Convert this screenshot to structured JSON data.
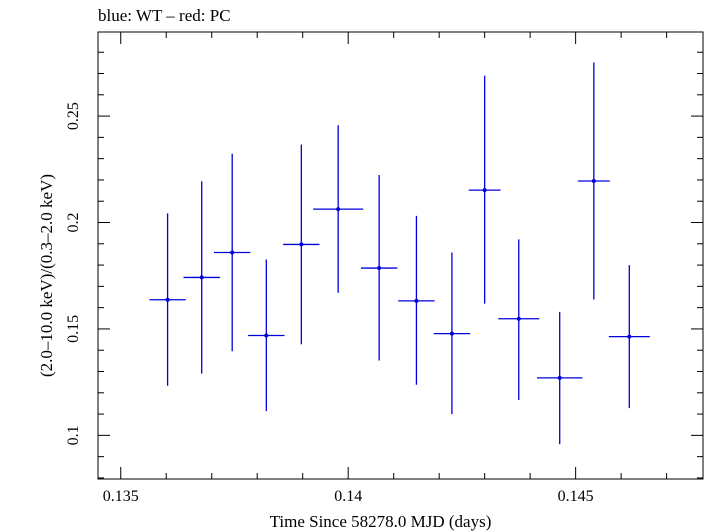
{
  "chart_data": {
    "type": "scatter",
    "title": "blue: WT – red: PC",
    "xlabel": "Time Since 58278.0 MJD (days)",
    "ylabel": "(2.0–10.0 keV)/(0.3–2.0 keV)",
    "xlim": [
      0.1345,
      0.1478
    ],
    "ylim": [
      0.0795,
      0.2895
    ],
    "x_ticks": [
      0.135,
      0.14,
      0.145
    ],
    "x_tick_labels": [
      "0.135",
      "0.14",
      "0.145"
    ],
    "y_ticks": [
      0.1,
      0.15,
      0.2,
      0.25
    ],
    "y_tick_labels": [
      "0.1",
      "0.15",
      "0.2",
      "0.25"
    ],
    "grid": false,
    "series": [
      {
        "color": "#0000dd",
        "points": [
          {
            "x": 0.13603,
            "y": 0.1637,
            "xerr": 0.0004,
            "ylo": 0.1233,
            "yhi": 0.2043
          },
          {
            "x": 0.13678,
            "y": 0.1742,
            "xerr": 0.0004,
            "ylo": 0.129,
            "yhi": 0.2194
          },
          {
            "x": 0.13745,
            "y": 0.1859,
            "xerr": 0.0004,
            "ylo": 0.1395,
            "yhi": 0.2323
          },
          {
            "x": 0.1382,
            "y": 0.1469,
            "xerr": 0.0004,
            "ylo": 0.1114,
            "yhi": 0.1826
          },
          {
            "x": 0.13897,
            "y": 0.1897,
            "xerr": 0.0004,
            "ylo": 0.1428,
            "yhi": 0.2366
          },
          {
            "x": 0.13978,
            "y": 0.2063,
            "xerr": 0.00055,
            "ylo": 0.167,
            "yhi": 0.2457
          },
          {
            "x": 0.14068,
            "y": 0.1786,
            "xerr": 0.0004,
            "ylo": 0.1352,
            "yhi": 0.2223
          },
          {
            "x": 0.1415,
            "y": 0.1632,
            "xerr": 0.0004,
            "ylo": 0.1238,
            "yhi": 0.2031
          },
          {
            "x": 0.14228,
            "y": 0.1478,
            "xerr": 0.0004,
            "ylo": 0.11,
            "yhi": 0.1859
          },
          {
            "x": 0.143,
            "y": 0.2152,
            "xerr": 0.00035,
            "ylo": 0.1619,
            "yhi": 0.269
          },
          {
            "x": 0.14375,
            "y": 0.1548,
            "xerr": 0.00045,
            "ylo": 0.1166,
            "yhi": 0.1921
          },
          {
            "x": 0.14465,
            "y": 0.127,
            "xerr": 0.0005,
            "ylo": 0.0958,
            "yhi": 0.158
          },
          {
            "x": 0.1454,
            "y": 0.2195,
            "xerr": 0.00035,
            "ylo": 0.1638,
            "yhi": 0.2752
          },
          {
            "x": 0.14618,
            "y": 0.1464,
            "xerr": 0.00045,
            "ylo": 0.1128,
            "yhi": 0.18
          }
        ]
      }
    ]
  }
}
